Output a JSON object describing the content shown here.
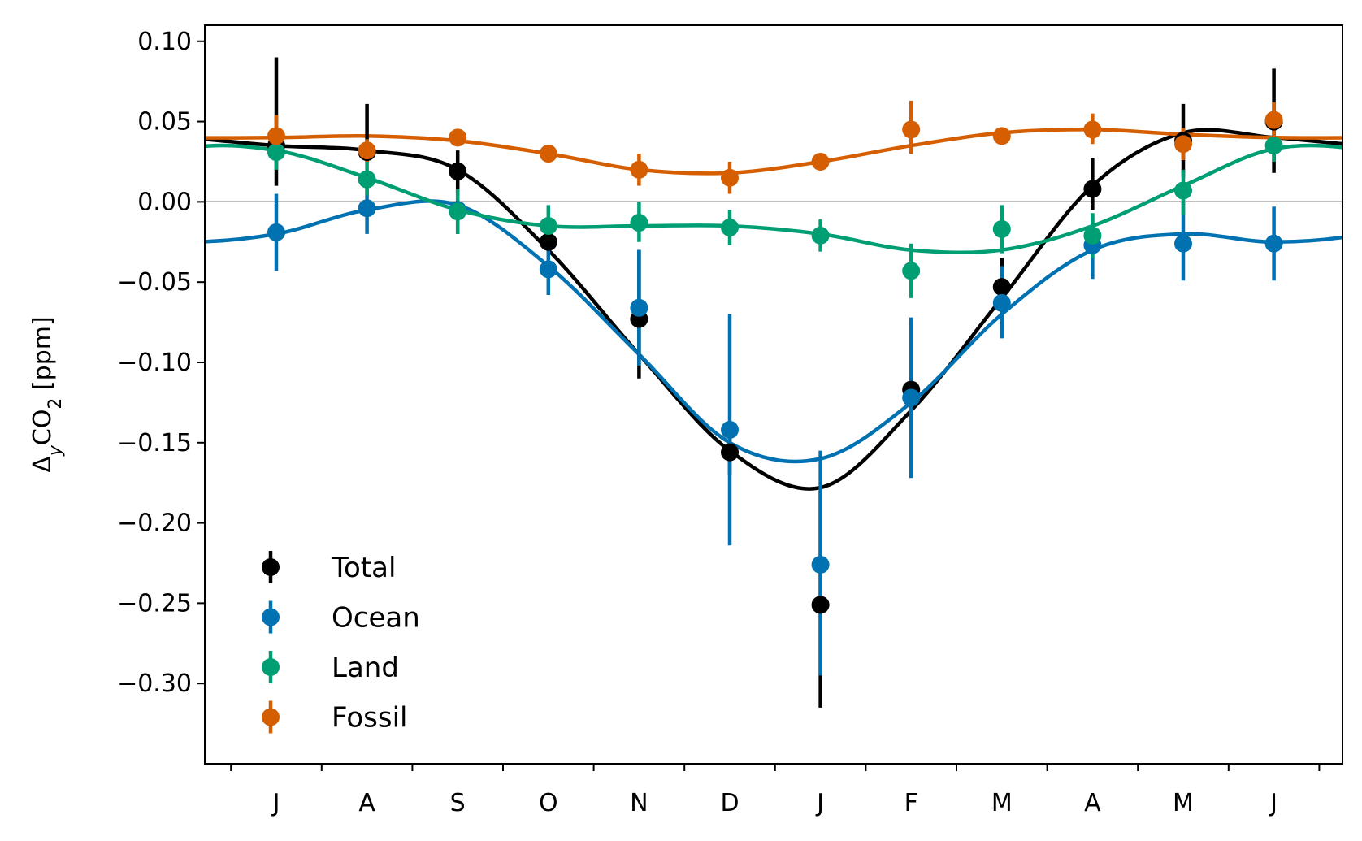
{
  "chart_data": {
    "type": "scatter",
    "title": "",
    "xlabel": "",
    "ylabel": "Δ_y CO_2 [ppm]",
    "ylabel_parts": {
      "prefix": "Δ",
      "sub1": "y",
      "mid": "CO",
      "sub2": "2",
      "suffix": " [ppm]"
    },
    "categories": [
      "J",
      "A",
      "S",
      "O",
      "N",
      "D",
      "J",
      "F",
      "M",
      "A",
      "M",
      "J"
    ],
    "ylim": [
      -0.35,
      0.11
    ],
    "yticks": [
      0.1,
      0.05,
      0.0,
      -0.05,
      -0.1,
      -0.15,
      -0.2,
      -0.25,
      -0.3
    ],
    "ytick_labels": [
      "0.10",
      "0.05",
      "0.00",
      "−0.05",
      "−0.10",
      "−0.15",
      "−0.20",
      "−0.25",
      "−0.30"
    ],
    "zero_line": true,
    "grid": false,
    "legend_position": "lower-left",
    "series": [
      {
        "name": "Total",
        "color": "#000000",
        "values": [
          0.035,
          0.031,
          0.019,
          -0.025,
          -0.073,
          -0.156,
          -0.251,
          -0.117,
          -0.053,
          0.008,
          0.038,
          0.05
        ],
        "err_lo": [
          0.01,
          0.025,
          0.005,
          -0.03,
          -0.11,
          -0.17,
          -0.315,
          -0.17,
          -0.08,
          -0.005,
          0.015,
          0.018
        ],
        "err_hi": [
          0.09,
          0.061,
          0.032,
          -0.02,
          -0.03,
          -0.145,
          -0.18,
          -0.075,
          -0.035,
          0.027,
          0.061,
          0.083
        ],
        "fit": [
          0.035,
          0.032,
          0.02,
          -0.03,
          -0.095,
          -0.155,
          -0.178,
          -0.13,
          -0.06,
          0.01,
          0.043,
          0.04
        ]
      },
      {
        "name": "Ocean",
        "color": "#0072b2",
        "values": [
          -0.019,
          -0.004,
          -0.005,
          -0.042,
          -0.066,
          -0.142,
          -0.226,
          -0.122,
          -0.063,
          -0.027,
          -0.026,
          -0.026
        ],
        "err_lo": [
          -0.043,
          -0.02,
          -0.02,
          -0.058,
          -0.102,
          -0.214,
          -0.295,
          -0.172,
          -0.085,
          -0.048,
          -0.049,
          -0.049
        ],
        "err_hi": [
          0.005,
          0.01,
          0.008,
          -0.025,
          -0.03,
          -0.07,
          -0.155,
          -0.072,
          -0.04,
          -0.008,
          0.0,
          -0.003
        ],
        "fit": [
          -0.02,
          -0.005,
          -0.002,
          -0.04,
          -0.095,
          -0.15,
          -0.16,
          -0.125,
          -0.07,
          -0.03,
          -0.02,
          -0.025
        ]
      },
      {
        "name": "Land",
        "color": "#009e73",
        "values": [
          0.031,
          0.014,
          -0.006,
          -0.015,
          -0.013,
          -0.016,
          -0.021,
          -0.043,
          -0.017,
          -0.021,
          0.007,
          0.035
        ],
        "err_lo": [
          0.02,
          0.004,
          -0.02,
          -0.028,
          -0.025,
          -0.027,
          -0.031,
          -0.06,
          -0.032,
          -0.035,
          -0.008,
          0.025
        ],
        "err_hi": [
          0.042,
          0.025,
          0.008,
          -0.002,
          0.0,
          -0.005,
          -0.011,
          -0.026,
          -0.002,
          -0.007,
          0.02,
          0.045
        ],
        "fit": [
          0.032,
          0.015,
          -0.005,
          -0.015,
          -0.015,
          -0.015,
          -0.02,
          -0.03,
          -0.03,
          -0.015,
          0.01,
          0.033
        ]
      },
      {
        "name": "Fossil",
        "color": "#d55e00",
        "values": [
          0.041,
          0.032,
          0.04,
          0.03,
          0.02,
          0.015,
          0.025,
          0.045,
          0.041,
          0.045,
          0.036,
          0.051
        ],
        "err_lo": [
          0.03,
          0.025,
          0.035,
          0.025,
          0.01,
          0.005,
          0.02,
          0.03,
          0.036,
          0.036,
          0.026,
          0.04
        ],
        "err_hi": [
          0.054,
          0.039,
          0.045,
          0.035,
          0.03,
          0.025,
          0.03,
          0.063,
          0.046,
          0.055,
          0.046,
          0.062
        ],
        "fit": [
          0.04,
          0.041,
          0.038,
          0.03,
          0.02,
          0.018,
          0.025,
          0.035,
          0.043,
          0.045,
          0.042,
          0.04
        ]
      }
    ]
  }
}
